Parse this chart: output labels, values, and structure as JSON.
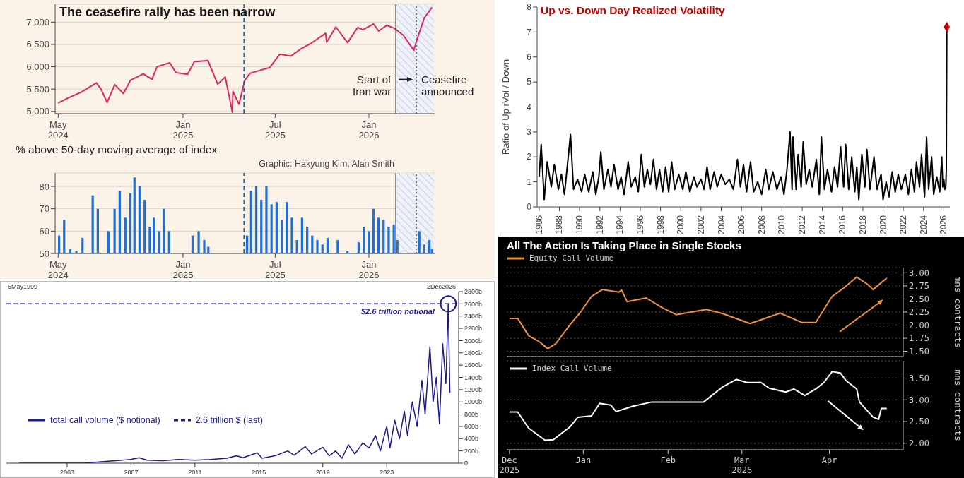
{
  "chart_data": [
    {
      "type": "line",
      "title": "The ceasefire rally has been narrow",
      "x": [
        "2024-05-01",
        "2024-05-20",
        "2024-06-15",
        "2024-07-15",
        "2024-07-24",
        "2024-08-05",
        "2024-08-20",
        "2024-09-06",
        "2024-09-20",
        "2024-10-15",
        "2024-11-01",
        "2024-11-11",
        "2024-12-06",
        "2024-12-18",
        "2025-01-10",
        "2025-01-23",
        "2025-02-19",
        "2025-03-10",
        "2025-03-25",
        "2025-04-08",
        "2025-04-09",
        "2025-04-21",
        "2025-05-02",
        "2025-05-12",
        "2025-06-01",
        "2025-06-20",
        "2025-07-10",
        "2025-08-01",
        "2025-08-20",
        "2025-09-10",
        "2025-10-08",
        "2025-10-10",
        "2025-10-28",
        "2025-11-20",
        "2025-12-10",
        "2025-12-20",
        "2026-01-10",
        "2026-01-20",
        "2026-02-05",
        "2026-02-20",
        "2026-03-10",
        "2026-03-30",
        "2026-04-08",
        "2026-04-20",
        "2026-05-05"
      ],
      "series": [
        {
          "color": "#e0245e",
          "values": [
            5190,
            5300,
            5430,
            5640,
            5500,
            5200,
            5600,
            5400,
            5700,
            5840,
            5720,
            6000,
            6090,
            5870,
            5830,
            6110,
            6140,
            5610,
            5770,
            4980,
            5450,
            5160,
            5690,
            5850,
            5920,
            5980,
            6280,
            6240,
            6400,
            6530,
            6750,
            6550,
            6890,
            6540,
            6880,
            6830,
            6960,
            6800,
            6930,
            6860,
            6700,
            6370,
            6700,
            7100,
            7330
          ]
        }
      ],
      "xlim": [
        "2024-04-25",
        "2026-05-10"
      ],
      "xticks": [
        {
          "value": "2024-05-01",
          "label": "May\n2024"
        },
        {
          "value": "2025-01-01",
          "label": "Jan\n2025"
        },
        {
          "value": "2025-07-01",
          "label": "Jul\n2025"
        },
        {
          "value": "2026-01-01",
          "label": "Jan\n2026"
        }
      ],
      "ylim": [
        4950,
        7400
      ],
      "yticks": [
        {
          "value": 5000,
          "label": "5,000"
        },
        {
          "value": 5500,
          "label": "5,500"
        },
        {
          "value": 6000,
          "label": "6,000"
        },
        {
          "value": 6500,
          "label": "6,500"
        },
        {
          "value": 7000,
          "label": "7,000"
        }
      ],
      "grid": "y",
      "ref_lines": [
        {
          "axis": "x",
          "value": "2025-05-01",
          "color": "#1f5f8b",
          "line_style": "dashed"
        },
        {
          "axis": "x",
          "value": "2026-02-23",
          "label": "Start of\nIran war",
          "color": "#333333",
          "line_style": "solid"
        },
        {
          "axis": "x",
          "value": "2026-04-04",
          "label": "Ceasefire\nannounced",
          "color": "#666666",
          "line_style": "dotted"
        }
      ],
      "bands": [
        {
          "axis": "x",
          "from": "2026-02-23",
          "to": "2026-05-08"
        }
      ]
    },
    {
      "type": "bar",
      "title": "% above 50-day moving average of index",
      "annotations": [
        "Graphic: Hakyung Kim, Alan Smith"
      ],
      "x": [
        "2024-05-03",
        "2024-05-13",
        "2024-05-25",
        "2024-06-06",
        "2024-06-18",
        "2024-07-08",
        "2024-07-18",
        "2024-08-08",
        "2024-08-20",
        "2024-08-30",
        "2024-09-10",
        "2024-09-20",
        "2024-09-28",
        "2024-10-08",
        "2024-10-18",
        "2024-10-28",
        "2024-11-05",
        "2024-11-15",
        "2024-11-25",
        "2024-12-05",
        "2025-01-20",
        "2025-02-01",
        "2025-02-12",
        "2025-02-20",
        "2025-05-07",
        "2025-05-15",
        "2025-05-25",
        "2025-06-04",
        "2025-06-14",
        "2025-06-24",
        "2025-07-04",
        "2025-07-14",
        "2025-07-24",
        "2025-08-03",
        "2025-08-13",
        "2025-08-23",
        "2025-09-02",
        "2025-09-12",
        "2025-09-22",
        "2025-10-02",
        "2025-10-12",
        "2025-11-01",
        "2025-11-20",
        "2025-12-12",
        "2025-12-22",
        "2026-01-01",
        "2026-01-10",
        "2026-01-20",
        "2026-01-30",
        "2026-02-09",
        "2026-02-19",
        "2026-02-26",
        "2026-04-10",
        "2026-04-20",
        "2026-04-30",
        "2026-05-05"
      ],
      "series": [
        {
          "color": "#1f6fd6",
          "values": [
            58,
            65,
            52,
            51,
            57,
            76,
            70,
            60,
            70,
            78,
            66,
            77,
            84,
            80,
            74,
            62,
            66,
            60,
            70,
            60,
            58,
            60,
            56,
            53,
            58,
            78,
            80,
            74,
            80,
            72,
            73,
            65,
            73,
            66,
            56,
            66,
            62,
            58,
            56,
            54,
            57,
            56,
            51,
            55,
            62,
            60,
            70,
            66,
            65,
            62,
            63,
            56,
            60,
            54,
            56,
            52
          ]
        }
      ],
      "xlim": [
        "2024-04-25",
        "2026-05-10"
      ],
      "xticks": [
        {
          "value": "2024-05-01",
          "label": "May\n2024"
        },
        {
          "value": "2025-01-01",
          "label": "Jan\n2025"
        },
        {
          "value": "2025-07-01",
          "label": "Jul\n2025"
        },
        {
          "value": "2026-01-01",
          "label": "Jan\n2026"
        }
      ],
      "ylim": [
        50,
        86
      ],
      "yticks": [
        50,
        60,
        70,
        80
      ],
      "grid": "y",
      "ref_lines": [
        {
          "axis": "x",
          "value": "2025-05-01",
          "color": "#1f5f8b",
          "line_style": "dashed"
        },
        {
          "axis": "x",
          "value": "2026-02-23",
          "color": "#333333",
          "line_style": "solid"
        },
        {
          "axis": "x",
          "value": "2026-04-04",
          "color": "#666666",
          "line_style": "dotted"
        }
      ],
      "bands": [
        {
          "axis": "x",
          "from": "2026-02-23",
          "to": "2026-05-08"
        }
      ]
    },
    {
      "type": "line",
      "title": "Up vs. Down Day Realized Volatility",
      "ylabel": "Ratio of Up rVol / Down",
      "series": [
        {
          "color": "#000000",
          "x": [
            1986.0,
            1986.2,
            1986.5,
            1986.8,
            1987.2,
            1987.5,
            1987.9,
            1988.2,
            1988.5,
            1988.8,
            1989.1,
            1989.4,
            1989.8,
            1990.2,
            1990.5,
            1990.9,
            1991.3,
            1991.6,
            1991.9,
            1992.1,
            1992.4,
            1992.8,
            1993.1,
            1993.4,
            1993.8,
            1994.1,
            1994.4,
            1994.8,
            1995.1,
            1995.5,
            1995.8,
            1996.1,
            1996.4,
            1996.7,
            1997.0,
            1997.3,
            1997.6,
            1997.9,
            1998.2,
            1998.5,
            1998.8,
            1999.1,
            1999.4,
            1999.8,
            2000.2,
            2000.5,
            2000.9,
            2001.3,
            2001.6,
            2002.0,
            2002.3,
            2002.6,
            2002.9,
            2003.3,
            2003.6,
            2004.0,
            2004.4,
            2004.8,
            2005.2,
            2005.6,
            2005.9,
            2006.2,
            2006.5,
            2006.9,
            2007.2,
            2007.6,
            2008.0,
            2008.4,
            2008.7,
            2009.1,
            2009.5,
            2009.9,
            2010.2,
            2010.5,
            2010.8,
            2011.0,
            2011.1,
            2011.4,
            2011.6,
            2011.9,
            2012.1,
            2012.4,
            2012.7,
            2013.0,
            2013.4,
            2013.7,
            2013.9,
            2014.2,
            2014.5,
            2014.9,
            2015.2,
            2015.5,
            2015.8,
            2016.1,
            2016.3,
            2016.6,
            2016.9,
            2017.2,
            2017.4,
            2017.6,
            2017.9,
            2018.2,
            2018.4,
            2018.7,
            2019.1,
            2019.4,
            2019.8,
            2020.0,
            2020.3,
            2020.6,
            2020.9,
            2021.2,
            2021.5,
            2021.8,
            2022.2,
            2022.5,
            2022.8,
            2023.1,
            2023.3,
            2023.6,
            2023.8,
            2024.1,
            2024.3,
            2024.5,
            2024.8,
            2025.0,
            2025.3,
            2025.6,
            2025.8,
            2025.9,
            2026.0,
            2026.1,
            2026.2,
            2026.25,
            2026.3
          ],
          "values": [
            1.2,
            2.5,
            0.3,
            1.8,
            0.8,
            1.7,
            0.7,
            1.3,
            0.5,
            1.7,
            2.9,
            0.7,
            1.1,
            0.6,
            1.3,
            0.6,
            1.4,
            0.5,
            1.2,
            2.2,
            0.7,
            1.5,
            0.8,
            1.7,
            0.7,
            1.2,
            0.5,
            1.8,
            0.8,
            1.2,
            0.6,
            2.1,
            0.8,
            1.5,
            0.9,
            1.9,
            0.7,
            1.5,
            0.6,
            1.6,
            0.6,
            1.8,
            0.7,
            1.3,
            0.7,
            1.4,
            0.6,
            1.2,
            0.8,
            1.1,
            0.7,
            1.6,
            0.7,
            1.4,
            0.8,
            1.3,
            0.9,
            1.1,
            0.7,
            1.9,
            0.8,
            1.7,
            0.6,
            1.8,
            0.6,
            1.0,
            0.5,
            1.5,
            0.7,
            1.4,
            0.7,
            1.2,
            0.5,
            1.5,
            3.0,
            0.7,
            2.8,
            0.7,
            2.1,
            0.8,
            2.6,
            0.9,
            1.5,
            0.8,
            1.9,
            0.5,
            2.8,
            0.7,
            1.5,
            0.6,
            1.6,
            0.8,
            2.4,
            0.8,
            2.5,
            0.7,
            2.0,
            0.6,
            1.6,
            0.3,
            2.1,
            0.8,
            2.3,
            0.7,
            2.0,
            0.7,
            1.3,
            0.3,
            1.0,
            0.4,
            1.4,
            0.6,
            1.3,
            0.7,
            1.3,
            0.5,
            1.5,
            0.6,
            1.8,
            0.8,
            2.1,
            0.4,
            2.8,
            0.7,
            2.0,
            0.5,
            1.2,
            0.6,
            2.0,
            0.8,
            1.1,
            0.7,
            0.8,
            1.5,
            7.2
          ]
        },
        {
          "type": "scatter",
          "color": "#c00000",
          "marker": "diamond",
          "x": [
            2026.3
          ],
          "values": [
            7.2
          ]
        }
      ],
      "xlim": [
        1985.8,
        2026.6
      ],
      "xticks": [
        1986,
        1988,
        1990,
        1992,
        1994,
        1996,
        1998,
        2000,
        2002,
        2004,
        2006,
        2008,
        2010,
        2012,
        2014,
        2016,
        2018,
        2020,
        2022,
        2024,
        2026
      ],
      "ylim": [
        0,
        8
      ],
      "yticks": [
        0,
        1,
        2,
        3,
        4,
        5,
        6,
        7,
        8
      ]
    },
    {
      "type": "line",
      "annotations": [
        "6May1999",
        "2Dec2026",
        "$2.6 trillion notional"
      ],
      "series": [
        {
          "name": "total call volume ($ notional)",
          "color": "#1a1a8c",
          "x": [
            2000,
            2002,
            2004,
            2005,
            2006,
            2007,
            2007.5,
            2008,
            2009,
            2010,
            2011,
            2012,
            2013,
            2013.6,
            2014,
            2014.9,
            2015.2,
            2016,
            2016.8,
            2017.2,
            2017.9,
            2018.3,
            2019,
            2019.4,
            2019.8,
            2020.2,
            2020.6,
            2021,
            2021.5,
            2021.9,
            2022.3,
            2022.6,
            2023.0,
            2023.2,
            2023.5,
            2023.8,
            2024.1,
            2024.3,
            2024.6,
            2024.9,
            2025.2,
            2025.4,
            2025.7,
            2025.9,
            2026.1,
            2026.3,
            2026.5,
            2026.7,
            2026.85,
            2026.95
          ],
          "values": [
            0,
            0,
            0,
            20,
            40,
            60,
            90,
            50,
            40,
            60,
            50,
            60,
            80,
            120,
            90,
            170,
            80,
            120,
            200,
            130,
            270,
            150,
            260,
            120,
            200,
            80,
            300,
            150,
            330,
            250,
            450,
            200,
            600,
            250,
            700,
            400,
            850,
            450,
            1000,
            600,
            1350,
            800,
            1900,
            1000,
            1400,
            640,
            1950,
            1300,
            2600,
            1150
          ]
        },
        {
          "name": "2.6 trillion $ (last)",
          "color": "#1a1a8c",
          "line_style": "dashed",
          "x": [
            1999.2,
            2027.5
          ],
          "values": [
            2600,
            2600
          ]
        }
      ],
      "xlim": [
        1999.2,
        2027.5
      ],
      "xticks": [
        2003,
        2007,
        2011,
        2015,
        2019,
        2023
      ],
      "ylim": [
        0,
        2800
      ],
      "yticks": [
        0,
        {
          "value": 200,
          "label": "200b"
        },
        {
          "value": 400,
          "label": "400b"
        },
        {
          "value": 600,
          "label": "600b"
        },
        {
          "value": 800,
          "label": "800b"
        },
        {
          "value": 1000,
          "label": "1000b"
        },
        {
          "value": 1200,
          "label": "1200b"
        },
        {
          "value": 1400,
          "label": "1400b"
        },
        {
          "value": 1600,
          "label": "1600b"
        },
        {
          "value": 1800,
          "label": "1800b"
        },
        {
          "value": 2000,
          "label": "2000b"
        },
        {
          "value": 2200,
          "label": "2200b"
        },
        {
          "value": 2400,
          "label": "2400b"
        },
        {
          "value": 2600,
          "label": "2600b"
        },
        {
          "value": 2800,
          "label": "2800b"
        }
      ],
      "legend": "left"
    },
    {
      "type": "line",
      "title": "All The Action Is Taking Place in Single Stocks",
      "ylabel": "mns contracts",
      "x": [
        "2025-12-20",
        "2025-12-23",
        "2025-12-27",
        "2025-12-31",
        "2026-01-03",
        "2026-01-06",
        "2026-01-11",
        "2026-01-15",
        "2026-01-19",
        "2026-01-23",
        "2026-01-29",
        "2026-01-30",
        "2026-02-01",
        "2026-02-08",
        "2026-02-14",
        "2026-02-19",
        "2026-03-02",
        "2026-03-08",
        "2026-03-18",
        "2026-03-29",
        "2026-04-06",
        "2026-04-11",
        "2026-04-17",
        "2026-04-21",
        "2026-04-26",
        "2026-04-30",
        "2026-05-02",
        "2026-05-07"
      ],
      "series": [
        {
          "name": "Equity Call Volume",
          "color": "#f0913a",
          "values": [
            2.13,
            2.13,
            1.8,
            1.68,
            1.55,
            1.65,
            2.0,
            2.25,
            2.55,
            2.68,
            2.63,
            2.67,
            2.45,
            2.52,
            2.33,
            2.2,
            2.3,
            2.22,
            2.03,
            2.23,
            2.05,
            2.05,
            2.55,
            2.7,
            2.92,
            2.78,
            2.68,
            2.9
          ]
        }
      ],
      "xlim": [
        "2025-12-19",
        "2026-05-13"
      ],
      "ylim": [
        1.4,
        3.1
      ],
      "yticks": [
        {
          "value": 1.5,
          "label": "1.50"
        },
        {
          "value": 1.75,
          "label": "1.75"
        },
        {
          "value": 2,
          "label": "2.00"
        },
        {
          "value": 2.25,
          "label": "2.25"
        },
        {
          "value": 2.5,
          "label": "2.50"
        },
        {
          "value": 2.75,
          "label": "2.75"
        },
        {
          "value": 3,
          "label": "3.00"
        }
      ],
      "grid": "y",
      "legend": "top left",
      "tick_labels": "y"
    },
    {
      "type": "line",
      "ylabel": "mns contracts",
      "x": [
        "2025-12-20",
        "2025-12-23",
        "2025-12-27",
        "2026-01-02",
        "2026-01-05",
        "2026-01-11",
        "2026-01-14",
        "2026-01-19",
        "2026-01-22",
        "2026-01-26",
        "2026-01-28",
        "2026-02-03",
        "2026-02-10",
        "2026-02-19",
        "2026-03-01",
        "2026-03-08",
        "2026-03-13",
        "2026-03-17",
        "2026-03-22",
        "2026-03-25",
        "2026-03-31",
        "2026-04-03",
        "2026-04-07",
        "2026-04-11",
        "2026-04-14",
        "2026-04-17",
        "2026-04-20",
        "2026-04-22",
        "2026-04-26",
        "2026-04-27",
        "2026-05-02",
        "2026-05-04",
        "2026-05-05",
        "2026-05-07"
      ],
      "series": [
        {
          "name": "Index Call Volume",
          "color": "#ffffff",
          "values": [
            2.72,
            2.72,
            2.35,
            2.07,
            2.08,
            2.37,
            2.6,
            2.63,
            2.92,
            2.88,
            2.73,
            2.85,
            2.95,
            2.95,
            2.95,
            3.3,
            3.47,
            3.4,
            3.4,
            3.27,
            3.18,
            3.25,
            3.1,
            3.25,
            3.4,
            3.65,
            3.62,
            3.45,
            3.25,
            2.95,
            2.6,
            2.55,
            2.8,
            2.8
          ]
        }
      ],
      "xlim": [
        "2025-12-19",
        "2026-05-13"
      ],
      "xticks": [
        {
          "value": "2025-12-20",
          "label": "Dec\n2025"
        },
        {
          "value": "2026-01-16",
          "label": "Jan"
        },
        {
          "value": "2026-02-16",
          "label": "Feb"
        },
        {
          "value": "2026-03-15",
          "label": "Mar\n2026"
        },
        {
          "value": "2026-04-16",
          "label": "Apr"
        }
      ],
      "ylim": [
        1.85,
        3.9
      ],
      "yticks": [
        {
          "value": 2,
          "label": "2.00"
        },
        {
          "value": 2.5,
          "label": "2.50"
        },
        {
          "value": 3,
          "label": "3.00"
        },
        {
          "value": 3.5,
          "label": "3.50"
        }
      ],
      "grid": "y",
      "legend": "top left"
    }
  ]
}
